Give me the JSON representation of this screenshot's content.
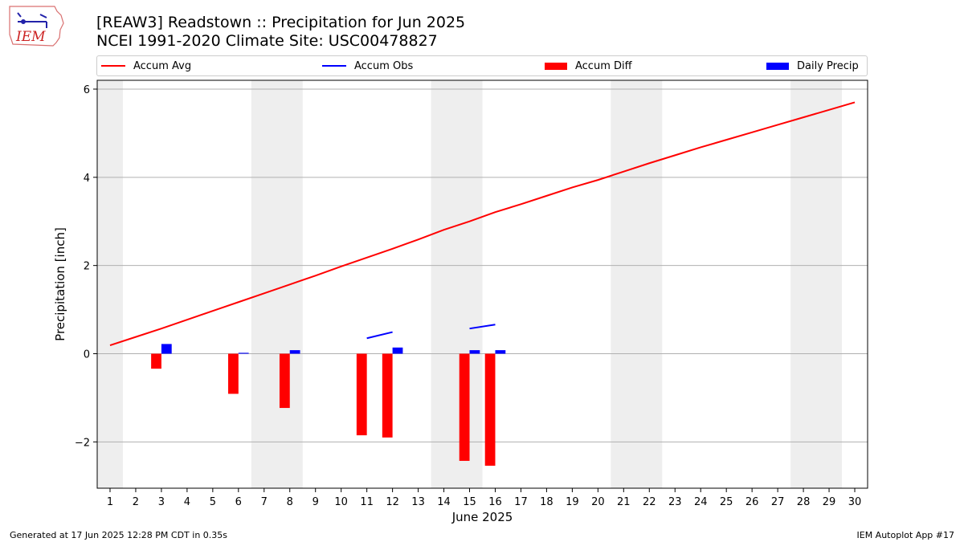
{
  "header": {
    "title_line1": "[REAW3] Readstown :: Precipitation for Jun 2025",
    "title_line2": "NCEI 1991-2020 Climate Site: USC00478827",
    "logo_text": "IEM"
  },
  "footer": {
    "left": "Generated at 17 Jun 2025 12:28 PM CDT in 0.35s",
    "right": "IEM Autoplot App #17"
  },
  "colors": {
    "avg": "#ff0000",
    "obs": "#0000ff",
    "diff": "#ff0000",
    "daily": "#0000ff",
    "weekend": "#eeeeee",
    "grid": "#b0b0b0",
    "zero_line": "#b0b0b0"
  },
  "chart_data": {
    "type": "bar",
    "xlabel": "June 2025",
    "ylabel": "Precipitation [inch]",
    "xlim": [
      0.5,
      30.5
    ],
    "ylim": [
      -3.05,
      6.2
    ],
    "x_ticks": [
      "1",
      "2",
      "3",
      "4",
      "5",
      "6",
      "7",
      "8",
      "9",
      "10",
      "11",
      "12",
      "13",
      "14",
      "15",
      "16",
      "17",
      "18",
      "19",
      "20",
      "21",
      "22",
      "23",
      "24",
      "25",
      "26",
      "27",
      "28",
      "29",
      "30"
    ],
    "y_ticks": [
      {
        "value": -2,
        "label": "−2"
      },
      {
        "value": 0,
        "label": "0"
      },
      {
        "value": 2,
        "label": "2"
      },
      {
        "value": 4,
        "label": "4"
      },
      {
        "value": 6,
        "label": "6"
      }
    ],
    "grid": "horizontal",
    "legend_position": "top",
    "weekend_shading": [
      [
        0.5,
        1.5
      ],
      [
        6.5,
        8.5
      ],
      [
        13.5,
        15.5
      ],
      [
        20.5,
        22.5
      ],
      [
        27.5,
        29.5
      ]
    ],
    "series": [
      {
        "name": "Accum Avg",
        "kind": "line",
        "color": "#ff0000",
        "x": [
          1,
          2,
          3,
          4,
          5,
          6,
          7,
          8,
          9,
          10,
          11,
          12,
          13,
          14,
          15,
          16,
          17,
          18,
          19,
          20,
          21,
          22,
          23,
          24,
          25,
          26,
          27,
          28,
          29,
          30
        ],
        "values": [
          0.19,
          0.38,
          0.57,
          0.77,
          0.97,
          1.17,
          1.37,
          1.57,
          1.77,
          1.98,
          2.18,
          2.38,
          2.59,
          2.81,
          3.0,
          3.21,
          3.39,
          3.58,
          3.77,
          3.94,
          4.13,
          4.32,
          4.5,
          4.68,
          4.85,
          5.02,
          5.19,
          5.36,
          5.53,
          5.7
        ]
      },
      {
        "name": "Accum Obs",
        "kind": "line",
        "color": "#0000ff",
        "segments": [
          {
            "x": [
              11,
              12
            ],
            "values": [
              0.35,
              0.49
            ]
          },
          {
            "x": [
              15,
              16
            ],
            "values": [
              0.57,
              0.66
            ]
          }
        ]
      },
      {
        "name": "Accum Diff",
        "kind": "bar",
        "color": "#ff0000",
        "x": [
          3,
          6,
          8,
          11,
          12,
          15,
          16
        ],
        "values": [
          -0.34,
          -0.91,
          -1.23,
          -1.85,
          -1.9,
          -2.43,
          -2.54
        ]
      },
      {
        "name": "Daily Precip",
        "kind": "bar",
        "color": "#0000ff",
        "x": [
          3,
          6,
          8,
          12,
          15,
          16
        ],
        "values": [
          0.22,
          0.02,
          0.08,
          0.14,
          0.08,
          0.08
        ]
      }
    ]
  }
}
